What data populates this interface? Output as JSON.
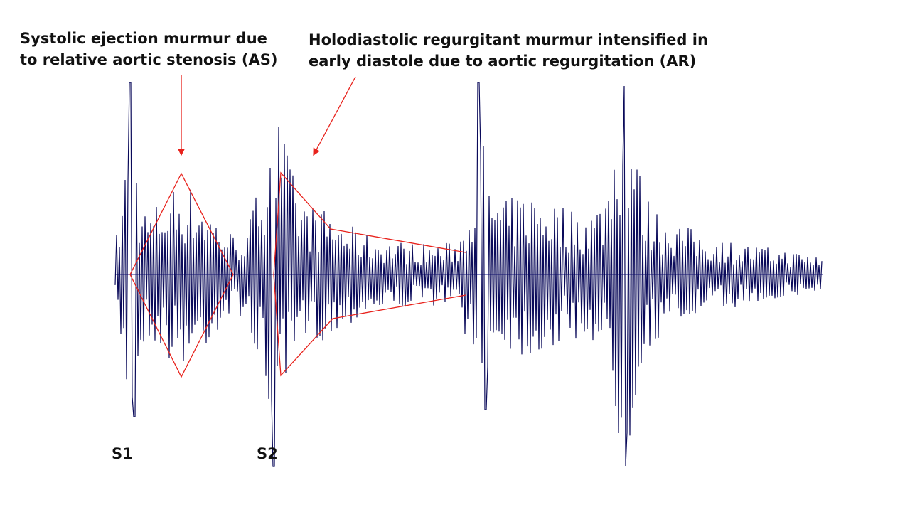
{
  "annotations": [
    {
      "lines": [
        "Systolic ejection murmur due",
        "to relative aortic stenosis (AS)"
      ]
    },
    {
      "lines": [
        "Holodiastolic regurgitant murmur intensified in",
        "early diastole due to aortic regurgitation (AR)"
      ]
    }
  ],
  "sounds": [
    "S1",
    "S2"
  ]
}
